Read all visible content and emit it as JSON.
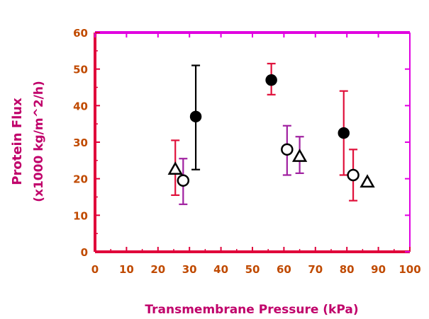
{
  "chart_data": {
    "type": "scatter",
    "title": "",
    "xlabel": "Transmembrane   Pressure   (kPa)",
    "ylabel_line1": "Protein Flux",
    "ylabel_line2": "(x1000 kg/m^2/h)",
    "xlim": [
      0,
      100
    ],
    "ylim": [
      0,
      60
    ],
    "xticks": [
      0,
      10,
      20,
      30,
      40,
      50,
      60,
      70,
      80,
      90,
      100
    ],
    "yticks": [
      0,
      10,
      20,
      30,
      40,
      50,
      60
    ],
    "grid": false,
    "legend": "none",
    "colors": {
      "axis_primary": "#e0003a",
      "axis_top": "#e000e0",
      "label": "#c0006a",
      "tick_label": "#c04a00",
      "marker": "#000000",
      "errorbar_red": "#e0103a",
      "errorbar_purple": "#a020a0",
      "errorbar_black": "#000000"
    },
    "series": [
      {
        "marker": "filled-circle",
        "points": [
          {
            "x": 32,
            "y": 37,
            "err_low": 22.5,
            "err_high": 51,
            "err_color": "errorbar_black"
          },
          {
            "x": 56,
            "y": 47,
            "err_low": 43,
            "err_high": 51.5,
            "err_color": "errorbar_red"
          },
          {
            "x": 79,
            "y": 32.5,
            "err_low": 21,
            "err_high": 44,
            "err_color": "errorbar_red"
          }
        ]
      },
      {
        "marker": "open-circle",
        "points": [
          {
            "x": 28,
            "y": 19.5,
            "err_low": 13,
            "err_high": 25.5,
            "err_color": "errorbar_purple"
          },
          {
            "x": 61,
            "y": 28,
            "err_low": 21,
            "err_high": 34.5,
            "err_color": "errorbar_purple"
          },
          {
            "x": 82,
            "y": 21,
            "err_low": 14,
            "err_high": 28,
            "err_color": "errorbar_red"
          }
        ]
      },
      {
        "marker": "open-triangle",
        "points": [
          {
            "x": 25.5,
            "y": 22.5,
            "err_low": 15.5,
            "err_high": 30.5,
            "err_color": "errorbar_red"
          },
          {
            "x": 65,
            "y": 26,
            "err_low": 21.5,
            "err_high": 31.5,
            "err_color": "errorbar_purple"
          },
          {
            "x": 86.5,
            "y": 19,
            "err_low": null,
            "err_high": null,
            "err_color": "errorbar_purple"
          }
        ]
      }
    ]
  }
}
